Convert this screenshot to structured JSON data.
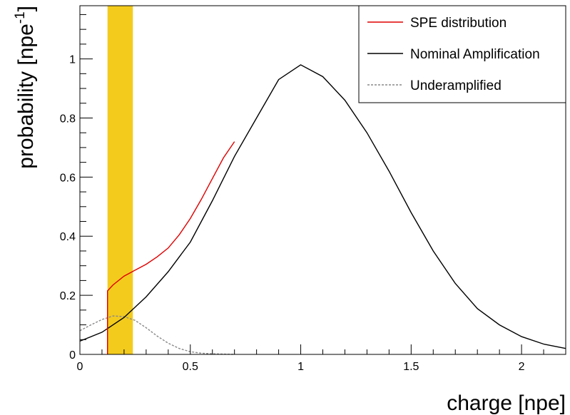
{
  "chart_data": {
    "type": "line",
    "xlabel": "charge [npe]",
    "ylabel": "probability [npe",
    "ylabel_superscript": "-1",
    "ylabel_suffix": "]",
    "xlim": [
      0,
      2.2
    ],
    "ylim": [
      0,
      1.18
    ],
    "xticks": [
      {
        "value": 0,
        "label": "0"
      },
      {
        "value": 0.5,
        "label": "0.5"
      },
      {
        "value": 1,
        "label": "1"
      },
      {
        "value": 1.5,
        "label": "1.5"
      },
      {
        "value": 2,
        "label": "2"
      }
    ],
    "yticks": [
      {
        "value": 0,
        "label": "0"
      },
      {
        "value": 0.2,
        "label": "0.2"
      },
      {
        "value": 0.4,
        "label": "0.4"
      },
      {
        "value": 0.6,
        "label": "0.6"
      },
      {
        "value": 0.8,
        "label": "0.8"
      },
      {
        "value": 1,
        "label": "1"
      }
    ],
    "grid": false,
    "legend_position": "top-right",
    "highlight_band": {
      "x_from": 0.125,
      "x_to": 0.24,
      "color": "#f2c811"
    },
    "series": [
      {
        "name": "SPE distribution",
        "color": "#e00000",
        "style": "solid",
        "x": [
          0.125,
          0.125,
          0.15,
          0.2,
          0.25,
          0.3,
          0.35,
          0.4,
          0.45,
          0.5,
          0.55,
          0.6,
          0.65,
          0.7
        ],
        "y": [
          0,
          0.215,
          0.235,
          0.265,
          0.285,
          0.305,
          0.33,
          0.36,
          0.405,
          0.46,
          0.525,
          0.595,
          0.665,
          0.72
        ]
      },
      {
        "name": "Nominal Amplification",
        "color": "#000000",
        "style": "solid",
        "x": [
          0,
          0.1,
          0.2,
          0.3,
          0.4,
          0.5,
          0.6,
          0.7,
          0.8,
          0.9,
          1.0,
          1.1,
          1.2,
          1.3,
          1.4,
          1.5,
          1.6,
          1.7,
          1.8,
          1.9,
          2.0,
          2.1,
          2.2
        ],
        "y": [
          0.045,
          0.075,
          0.125,
          0.195,
          0.28,
          0.38,
          0.52,
          0.67,
          0.8,
          0.93,
          0.98,
          0.94,
          0.86,
          0.75,
          0.62,
          0.48,
          0.35,
          0.24,
          0.155,
          0.1,
          0.06,
          0.035,
          0.02
        ]
      },
      {
        "name": "Underamplified",
        "color": "#888888",
        "style": "dashed",
        "x": [
          0,
          0.05,
          0.1,
          0.15,
          0.2,
          0.25,
          0.3,
          0.35,
          0.4,
          0.45,
          0.5,
          0.55,
          0.6,
          0.65,
          0.7
        ],
        "y": [
          0.08,
          0.1,
          0.118,
          0.13,
          0.128,
          0.115,
          0.09,
          0.062,
          0.038,
          0.02,
          0.009,
          0.004,
          0.002,
          0.001,
          0
        ]
      }
    ]
  }
}
